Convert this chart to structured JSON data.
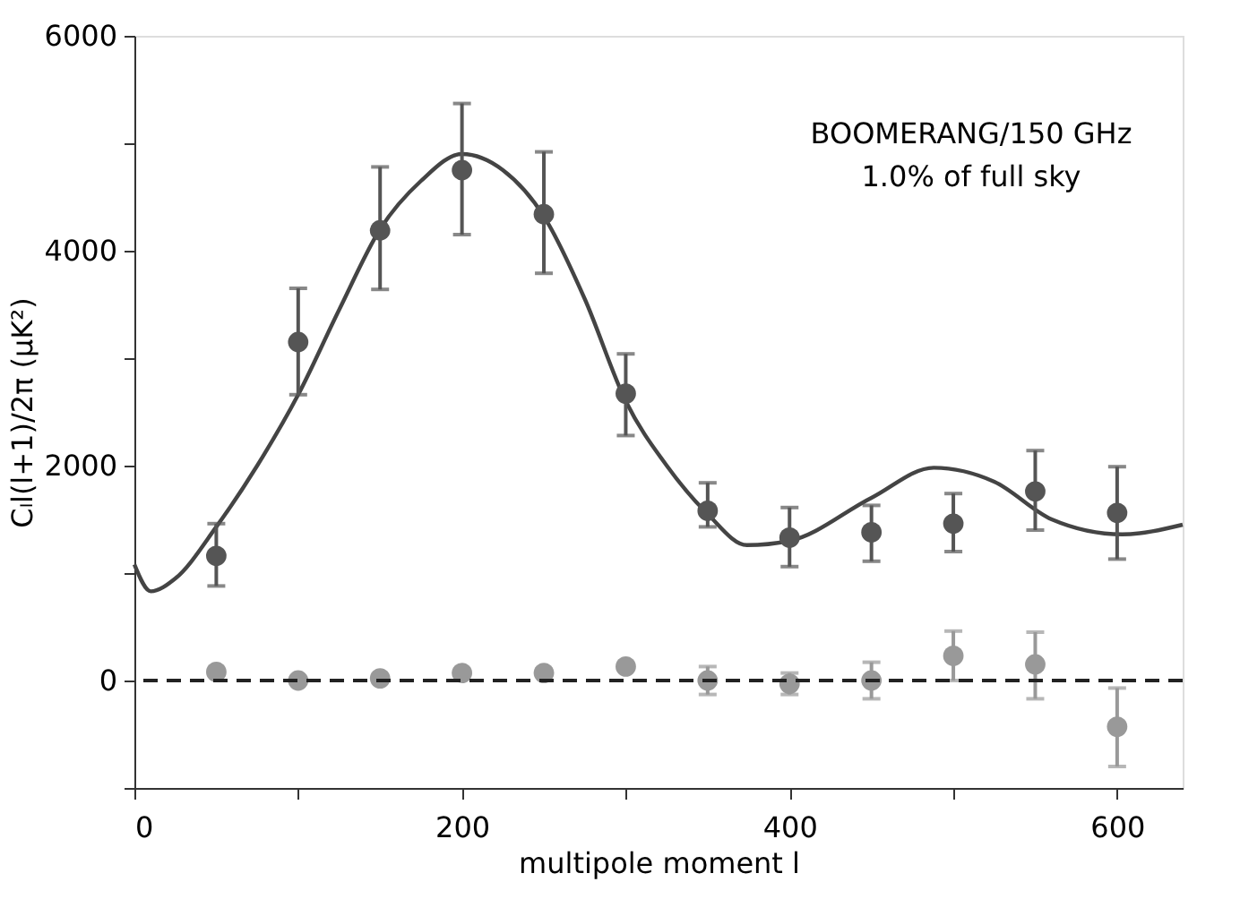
{
  "chart_data": {
    "type": "scatter",
    "xlabel": "multipole moment l",
    "ylabel": "Cₗl(l+1)/2π (μK²)",
    "annotations": [
      "BOOMERANG/150 GHz",
      "1.0% of full sky"
    ],
    "xlim": [
      0,
      640
    ],
    "xticks": [
      0,
      {
        "value": 100,
        "label": null
      },
      200,
      {
        "value": 300,
        "label": null
      },
      400,
      {
        "value": 500,
        "label": null
      },
      600
    ],
    "ylim": [
      -1000,
      6000
    ],
    "yticks": [
      {
        "value": -1000,
        "label": null
      },
      0,
      {
        "value": 1000,
        "label": null
      },
      2000,
      {
        "value": 3000,
        "label": null
      },
      4000,
      {
        "value": 5000,
        "label": null
      },
      6000
    ],
    "grid": false,
    "marker": "circle",
    "ref_lines": [
      {
        "axis": "y",
        "value": 0,
        "line_style": "dashed",
        "color": "#222222"
      }
    ],
    "series": [
      {
        "type": "line",
        "color": "#444444",
        "marker": "none",
        "x": [
          0,
          10,
          25,
          50,
          75,
          100,
          125,
          150,
          175,
          200,
          225,
          250,
          275,
          300,
          325,
          350,
          374,
          400,
          450,
          488,
          525,
          560,
          603,
          640
        ],
        "values": [
          1080,
          830,
          950,
          1430,
          2000,
          2660,
          3450,
          4200,
          4650,
          4900,
          4750,
          4320,
          3550,
          2600,
          2000,
          1550,
          1260,
          1300,
          1700,
          1980,
          1850,
          1500,
          1360,
          1450
        ]
      },
      {
        "color": "#555555",
        "x": [
          50,
          100,
          150,
          200,
          250,
          300,
          350,
          400,
          450,
          500,
          550,
          600
        ],
        "values": [
          1160,
          3150,
          4190,
          4750,
          4340,
          2670,
          1580,
          1330,
          1380,
          1460,
          1760,
          1560
        ],
        "errors": [
          [
            880,
            1460
          ],
          [
            2660,
            3650
          ],
          [
            3640,
            4780
          ],
          [
            4150,
            5370
          ],
          [
            3790,
            4920
          ],
          [
            2280,
            3040
          ],
          [
            1430,
            1840
          ],
          [
            1060,
            1610
          ],
          [
            1110,
            1630
          ],
          [
            1200,
            1740
          ],
          [
            1400,
            2140
          ],
          [
            1130,
            1990
          ]
        ]
      },
      {
        "color": "#999999",
        "x": [
          50,
          100,
          150,
          200,
          250,
          300,
          350,
          400,
          450,
          500,
          550,
          600
        ],
        "values": [
          80,
          0,
          20,
          70,
          70,
          130,
          0,
          -30,
          0,
          230,
          150,
          -430
        ],
        "errors": [
          null,
          null,
          null,
          null,
          null,
          null,
          [
            -130,
            130
          ],
          [
            -130,
            70
          ],
          [
            -170,
            170
          ],
          [
            0,
            460
          ],
          [
            -170,
            450
          ],
          [
            -800,
            -70
          ]
        ]
      }
    ]
  }
}
